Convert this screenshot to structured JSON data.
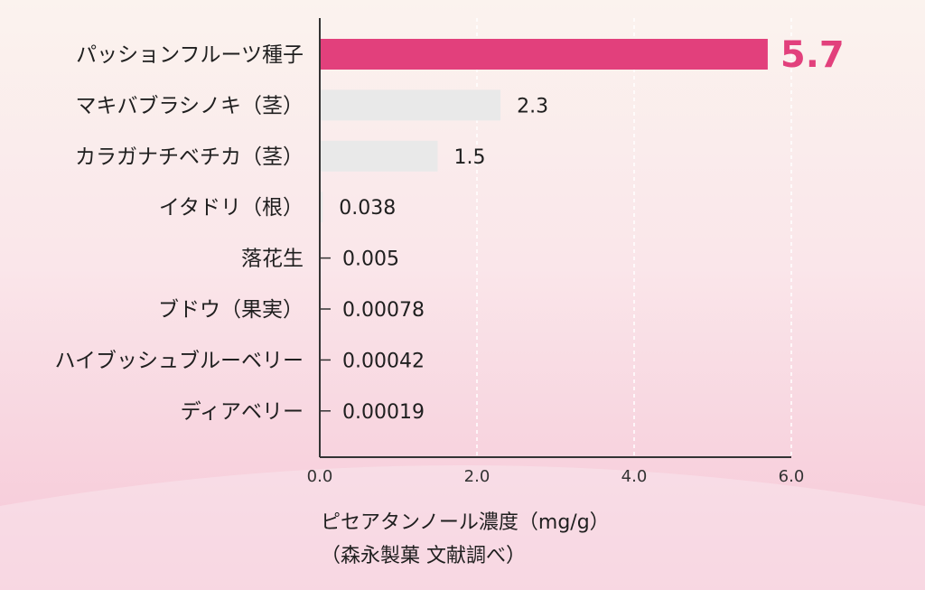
{
  "chart_data": {
    "type": "bar",
    "orientation": "horizontal",
    "categories": [
      "パッションフルーツ種子",
      "マキバブラシノキ（茎）",
      "カラガナチベチカ（茎）",
      "イタドリ（根）",
      "落花生",
      "ブドウ（果実）",
      "ハイブッシュブルーベリー",
      "ディアベリー"
    ],
    "values": [
      5.7,
      2.3,
      1.5,
      0.038,
      0.005,
      0.00078,
      0.00042,
      0.00019
    ],
    "value_labels": [
      "5.7",
      "2.3",
      "1.5",
      "0.038",
      "0.005",
      "0.00078",
      "0.00042",
      "0.00019"
    ],
    "xlabel": "ピセアタンノール濃度（mg/g）",
    "source_note": "（森永製菓 文献調べ）",
    "xlim": [
      0,
      6
    ],
    "xticks": [
      "0.0",
      "2.0",
      "4.0",
      "6.0"
    ],
    "grid": "vertical dashed",
    "colors": {
      "highlight": "#e2407c",
      "bar": "#e9e9e9",
      "axis": "#333333"
    }
  }
}
